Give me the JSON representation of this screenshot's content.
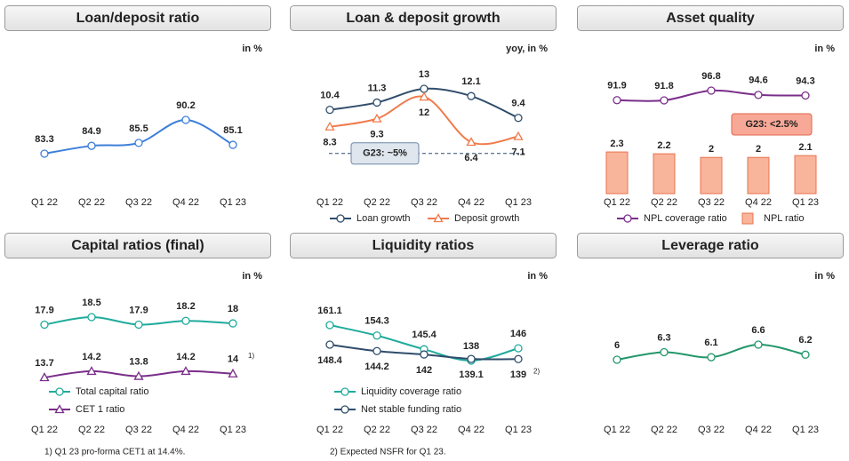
{
  "chart_data": [
    {
      "type": "line",
      "title": "Loan/deposit ratio",
      "unit": "in %",
      "categories": [
        "Q1 22",
        "Q2 22",
        "Q3 22",
        "Q4 22",
        "Q1 23"
      ],
      "values": [
        83.3,
        84.9,
        85.5,
        90.2,
        85.1
      ],
      "color": "#3d7fd9"
    },
    {
      "type": "line",
      "title": "Loan & deposit growth",
      "unit": "yoy, in %",
      "categories": [
        "Q1 22",
        "Q2 22",
        "Q3 22",
        "Q4 22",
        "Q1 23"
      ],
      "series": [
        {
          "name": "Loan growth",
          "color": "#2f4d6b",
          "marker": "circle",
          "values": [
            10.4,
            11.3,
            13.0,
            12.1,
            9.4
          ]
        },
        {
          "name": "Deposit growth",
          "color": "#f07b4c",
          "marker": "triangle",
          "values": [
            8.3,
            9.3,
            12.0,
            6.4,
            7.1
          ]
        }
      ],
      "guidance": {
        "value": 5,
        "label": "G23: ~5%"
      },
      "legend": "bottom"
    },
    {
      "type": "combo",
      "title": "Asset quality",
      "unit": "in %",
      "categories": [
        "Q1 22",
        "Q2 22",
        "Q3 22",
        "Q4 22",
        "Q1 23"
      ],
      "series": [
        {
          "name": "NPL coverage ratio",
          "type": "line",
          "color": "#7a2e8a",
          "marker": "circle",
          "values": [
            91.9,
            91.8,
            96.8,
            94.6,
            94.3
          ]
        },
        {
          "name": "NPL ratio",
          "type": "bar",
          "axis": "y2",
          "color": "#f9b49c",
          "values": [
            2.3,
            2.2,
            2.0,
            2.0,
            2.1
          ]
        }
      ],
      "annotation": "G23: <2.5%",
      "legend": "bottom"
    },
    {
      "type": "line",
      "title": "Capital ratios (final)",
      "unit": "in %",
      "categories": [
        "Q1 22",
        "Q2 22",
        "Q3 22",
        "Q4 22",
        "Q1 23"
      ],
      "series": [
        {
          "name": "Total capital ratio",
          "color": "#1fab9c",
          "marker": "circle",
          "values": [
            17.9,
            18.5,
            17.9,
            18.2,
            18.0
          ]
        },
        {
          "name": "CET 1 ratio",
          "color": "#7a2e8a",
          "marker": "triangle",
          "values": [
            13.7,
            14.2,
            13.8,
            14.2,
            14.0
          ],
          "footnote_marks": [
            null,
            null,
            null,
            null,
            "1)"
          ]
        }
      ],
      "legend": "lower left",
      "footnote": "1) Q1 23 pro-forma CET1 at 14.4%."
    },
    {
      "type": "line",
      "title": "Liquidity ratios",
      "unit": "in %",
      "categories": [
        "Q1 22",
        "Q2 22",
        "Q3 22",
        "Q4 22",
        "Q1 23"
      ],
      "series": [
        {
          "name": "Liquidity coverage ratio",
          "color": "#1fab9c",
          "marker": "circle",
          "values": [
            161.1,
            154.3,
            145.4,
            138.0,
            146.0
          ]
        },
        {
          "name": "Net stable funding ratio",
          "color": "#2f4d6b",
          "marker": "circle",
          "values": [
            148.4,
            144.2,
            142.0,
            139.1,
            139.0
          ],
          "footnote_marks": [
            null,
            null,
            null,
            null,
            "2)"
          ]
        }
      ],
      "legend": "lower left",
      "footnote": "2) Expected NSFR for Q1 23."
    },
    {
      "type": "line",
      "title": "Leverage ratio",
      "unit": "in %",
      "categories": [
        "Q1 22",
        "Q2 22",
        "Q3 22",
        "Q4 22",
        "Q1 23"
      ],
      "values": [
        6.0,
        6.3,
        6.1,
        6.6,
        6.2
      ],
      "color": "#23976b"
    }
  ]
}
